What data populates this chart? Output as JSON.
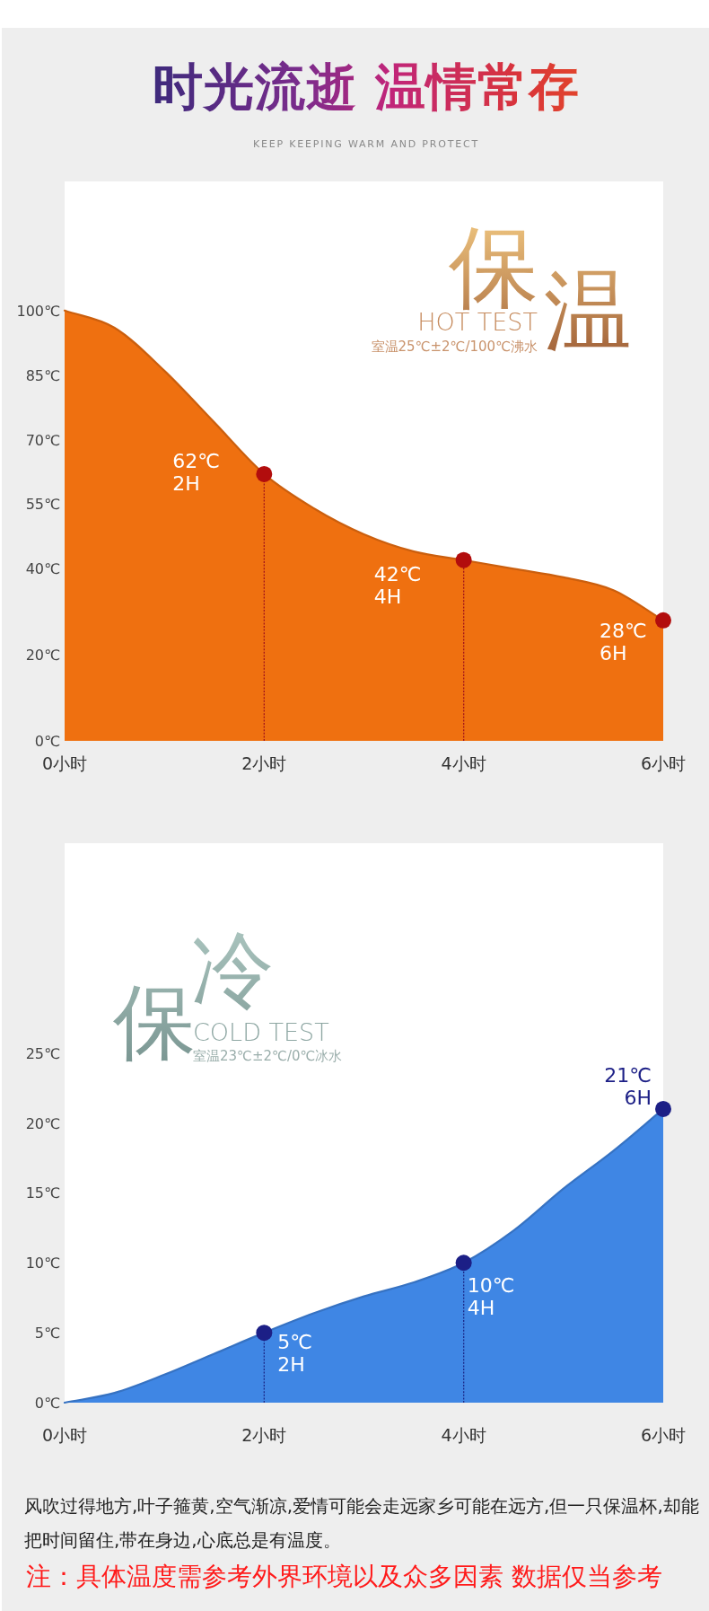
{
  "chart_data": [
    {
      "type": "area",
      "title": "时光流逝 温情常存",
      "subtitle": "KEEP KEEPING WARM AND PROTECT",
      "x": [
        0,
        0.5,
        1,
        1.5,
        2,
        2.5,
        3,
        3.5,
        4,
        4.5,
        5,
        5.5,
        6
      ],
      "series": [
        {
          "color": "#ef7010",
          "values": [
            100,
            96,
            86,
            74,
            62,
            54,
            48,
            44,
            42,
            40,
            38,
            35,
            28
          ]
        },
        {
          "type": "scatter",
          "marker": "circle",
          "color": "#b20d0d",
          "x": [
            2,
            4,
            6
          ],
          "values": [
            62,
            42,
            28
          ],
          "value_labels": [
            "62℃",
            "42℃",
            "28℃"
          ]
        }
      ],
      "xlim": [
        0,
        6
      ],
      "xticks": [
        {
          "value": 0,
          "label": "0小时"
        },
        {
          "value": 2,
          "label": "2小时"
        },
        {
          "value": 4,
          "label": "4小时"
        },
        {
          "value": 6,
          "label": "6小时"
        }
      ],
      "ylim": [
        0,
        130
      ],
      "yticks": [
        {
          "value": 0,
          "label": "0℃"
        },
        {
          "value": 20,
          "label": "20℃"
        },
        {
          "value": 40,
          "label": "40℃"
        },
        {
          "value": 55,
          "label": "55℃"
        },
        {
          "value": 70,
          "label": "70℃"
        },
        {
          "value": 85,
          "label": "85℃"
        },
        {
          "value": 100,
          "label": "100℃"
        }
      ],
      "ref_lines": [
        {
          "axis": "x",
          "value": 2,
          "color": "#a3161a",
          "line_style": "dotted"
        },
        {
          "axis": "x",
          "value": 4,
          "color": "#a3161a",
          "line_style": "dotted"
        }
      ],
      "annotations": [
        "保",
        "温",
        "HOT TEST",
        "室温25℃±2℃/100℃沸水",
        "2H",
        "4H",
        "6H"
      ]
    },
    {
      "type": "area",
      "x": [
        0,
        0.5,
        1,
        1.5,
        2,
        2.5,
        3,
        3.5,
        4,
        4.5,
        5,
        5.5,
        6
      ],
      "series": [
        {
          "color": "#3f86e4",
          "values": [
            0,
            0.7,
            2,
            3.5,
            5,
            6.4,
            7.6,
            8.6,
            10,
            12.3,
            15.3,
            18,
            21
          ]
        },
        {
          "type": "scatter",
          "marker": "circle",
          "color": "#1c1f86",
          "x": [
            2,
            4,
            6
          ],
          "values": [
            5,
            10,
            21
          ],
          "value_labels": [
            "5℃",
            "10℃",
            "21℃"
          ]
        }
      ],
      "xlim": [
        0,
        6
      ],
      "xticks": [
        {
          "value": 0,
          "label": "0小时"
        },
        {
          "value": 2,
          "label": "2小时"
        },
        {
          "value": 4,
          "label": "4小时"
        },
        {
          "value": 6,
          "label": "6小时"
        }
      ],
      "ylim": [
        0,
        40
      ],
      "yticks": [
        {
          "value": 0,
          "label": "0℃"
        },
        {
          "value": 5,
          "label": "5℃"
        },
        {
          "value": 10,
          "label": "10℃"
        },
        {
          "value": 15,
          "label": "15℃"
        },
        {
          "value": 20,
          "label": "20℃"
        },
        {
          "value": 25,
          "label": "25℃"
        }
      ],
      "ref_lines": [
        {
          "axis": "x",
          "value": 2,
          "color": "#1c2a8a",
          "line_style": "dotted"
        },
        {
          "axis": "x",
          "value": 4,
          "color": "#1c2a8a",
          "line_style": "dotted"
        }
      ],
      "annotations": [
        "保",
        "冷",
        "COLD TEST",
        "室温23℃±2℃/0℃冰水",
        "2H",
        "4H",
        "6H",
        "风吹过得地方,叶子箍黄,空气渐凉,爱情可能会走远家乡可能在远方,但一只保温杯,却能把时间留住,带在身边,心底总是有温度。",
        "注：具体温度需参考外界环境以及众多因素 数据仅当参考"
      ]
    }
  ]
}
